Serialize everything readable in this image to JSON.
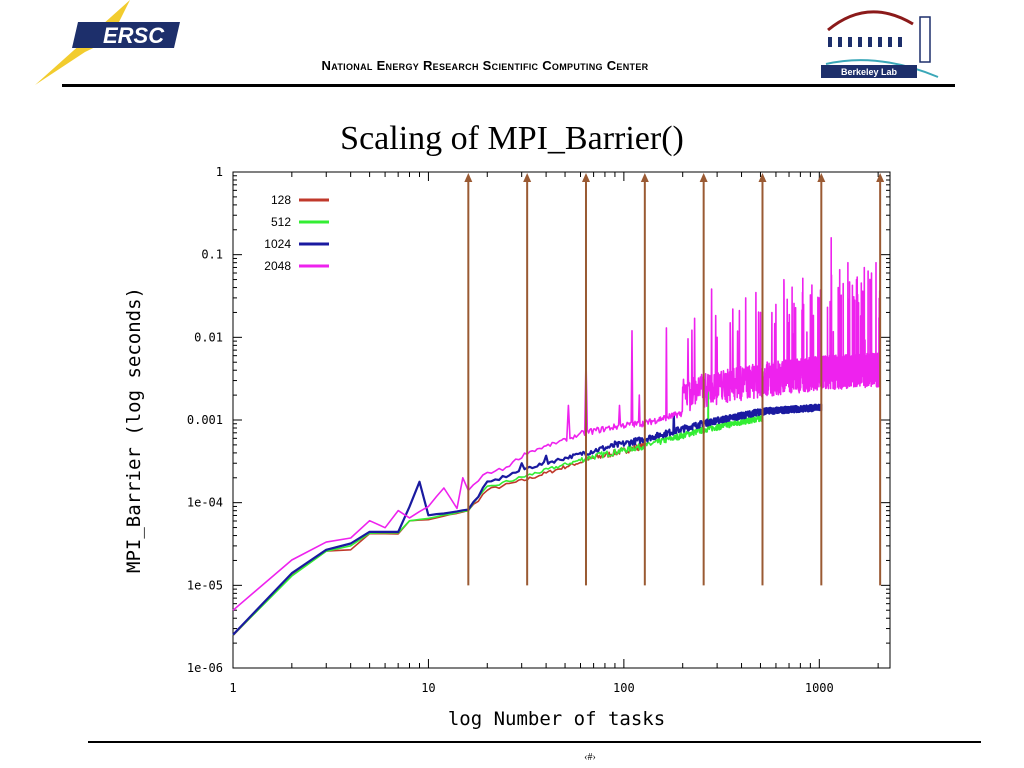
{
  "header": {
    "logo_text": "ERSC",
    "org_name": "National Energy Research Scientific Computing Center",
    "lab_logo_text": "Berkeley Lab"
  },
  "slide": {
    "title": "Scaling of MPI_Barrier()",
    "page_number": "‹#›"
  },
  "colors": {
    "s128": "#c0392b",
    "s512": "#33ee33",
    "s1024": "#1a1aa0",
    "s2048": "#ee22ee",
    "arrows": "#9a5a33",
    "nersc_blue": "#1d2f6b",
    "nersc_yellow": "#f2cc2e"
  },
  "chart_data": {
    "type": "line",
    "xlabel": "log Number of tasks",
    "ylabel": "MPI_Barrier (log seconds)",
    "x_scale": "log",
    "y_scale": "log",
    "xlim": [
      1,
      2300
    ],
    "ylim": [
      1e-06,
      1
    ],
    "x_ticks": [
      {
        "value": 1,
        "label": "1"
      },
      {
        "value": 10,
        "label": "10"
      },
      {
        "value": 100,
        "label": "100"
      },
      {
        "value": 1000,
        "label": "1000"
      }
    ],
    "y_ticks": [
      {
        "value": 1,
        "label": "1"
      },
      {
        "value": 0.1,
        "label": "0.1"
      },
      {
        "value": 0.01,
        "label": "0.01"
      },
      {
        "value": 0.001,
        "label": "0.001"
      },
      {
        "value": 0.0001,
        "label": "1e-04"
      },
      {
        "value": 1e-05,
        "label": "1e-05"
      },
      {
        "value": 1e-06,
        "label": "1e-06"
      }
    ],
    "legend_position": "top-left",
    "arrows_at_x": [
      16,
      32,
      64,
      128,
      256,
      512,
      1024,
      2048
    ],
    "arrow_y_range": [
      1e-05,
      1
    ],
    "series": [
      {
        "name": "128",
        "color_key": "s128",
        "max_x": 128,
        "points": [
          [
            1,
            2.5e-06
          ],
          [
            2,
            1.3e-05
          ],
          [
            3,
            2.6e-05
          ],
          [
            4,
            2.7e-05
          ],
          [
            5,
            4.2e-05
          ],
          [
            7,
            4.2e-05
          ],
          [
            8,
            6e-05
          ],
          [
            10,
            6.2e-05
          ],
          [
            16,
            8e-05
          ],
          [
            20,
            0.00014
          ],
          [
            32,
            0.00019
          ],
          [
            48,
            0.00026
          ],
          [
            64,
            0.00032
          ],
          [
            100,
            0.00042
          ],
          [
            128,
            0.00048
          ]
        ],
        "spikes": []
      },
      {
        "name": "512",
        "color_key": "s512",
        "max_x": 512,
        "points": [
          [
            1,
            2.5e-06
          ],
          [
            2,
            1.3e-05
          ],
          [
            3,
            2.6e-05
          ],
          [
            4,
            3e-05
          ],
          [
            5,
            4.3e-05
          ],
          [
            7,
            4.3e-05
          ],
          [
            8,
            6e-05
          ],
          [
            10,
            6.5e-05
          ],
          [
            16,
            8e-05
          ],
          [
            20,
            0.00015
          ],
          [
            32,
            0.00021
          ],
          [
            64,
            0.00034
          ],
          [
            128,
            0.00048
          ],
          [
            256,
            0.00075
          ],
          [
            512,
            0.00105
          ]
        ],
        "spikes": [
          [
            270,
            0.0035
          ]
        ]
      },
      {
        "name": "1024",
        "color_key": "s1024",
        "max_x": 1024,
        "points": [
          [
            1,
            2.5e-06
          ],
          [
            2,
            1.4e-05
          ],
          [
            3,
            2.7e-05
          ],
          [
            4,
            3.2e-05
          ],
          [
            5,
            4.4e-05
          ],
          [
            7,
            4.4e-05
          ],
          [
            8,
            9e-05
          ],
          [
            9,
            0.00018
          ],
          [
            10,
            7e-05
          ],
          [
            16,
            8.2e-05
          ],
          [
            20,
            0.00017
          ],
          [
            32,
            0.00026
          ],
          [
            64,
            0.0004
          ],
          [
            128,
            0.00058
          ],
          [
            256,
            0.0009
          ],
          [
            512,
            0.00125
          ],
          [
            1024,
            0.0014
          ]
        ],
        "spikes": [
          [
            30,
            0.0003
          ],
          [
            40,
            0.00037
          ],
          [
            90,
            0.00055
          ],
          [
            180,
            0.0012
          ]
        ]
      },
      {
        "name": "2048",
        "color_key": "s2048",
        "max_x": 2048,
        "points": [
          [
            1,
            5e-06
          ],
          [
            2,
            2e-05
          ],
          [
            3,
            3.3e-05
          ],
          [
            4,
            3.7e-05
          ],
          [
            5,
            6e-05
          ],
          [
            6,
            5e-05
          ],
          [
            7,
            8e-05
          ],
          [
            8,
            6.5e-05
          ],
          [
            10,
            9e-05
          ],
          [
            12,
            0.00015
          ],
          [
            14,
            8.5e-05
          ],
          [
            16,
            0.00014
          ],
          [
            20,
            0.00023
          ],
          [
            24,
            0.00025
          ],
          [
            32,
            0.0004
          ],
          [
            48,
            0.00055
          ],
          [
            64,
            0.0007
          ],
          [
            100,
            0.00085
          ],
          [
            128,
            0.0009
          ],
          [
            256,
            0.0014
          ],
          [
            512,
            0.0019
          ],
          [
            1024,
            0.0023
          ],
          [
            2048,
            0.0025
          ]
        ],
        "spikes": [
          [
            15,
            0.0002
          ],
          [
            52,
            0.0015
          ],
          [
            64,
            0.0055
          ],
          [
            95,
            0.0015
          ],
          [
            110,
            0.012
          ],
          [
            120,
            0.002
          ],
          [
            165,
            0.013
          ],
          [
            200,
            0.0025
          ],
          [
            230,
            0.017
          ],
          [
            300,
            0.01
          ],
          [
            350,
            0.015
          ],
          [
            420,
            0.03
          ],
          [
            500,
            0.02
          ],
          [
            600,
            0.025
          ],
          [
            700,
            0.015
          ],
          [
            820,
            0.035
          ],
          [
            1000,
            0.03
          ],
          [
            1150,
            0.16
          ],
          [
            1250,
            0.04
          ],
          [
            1400,
            0.08
          ],
          [
            1550,
            0.05
          ],
          [
            1700,
            0.07
          ],
          [
            1850,
            0.06
          ],
          [
            1950,
            0.08
          ],
          [
            2048,
            0.06
          ]
        ]
      }
    ]
  }
}
